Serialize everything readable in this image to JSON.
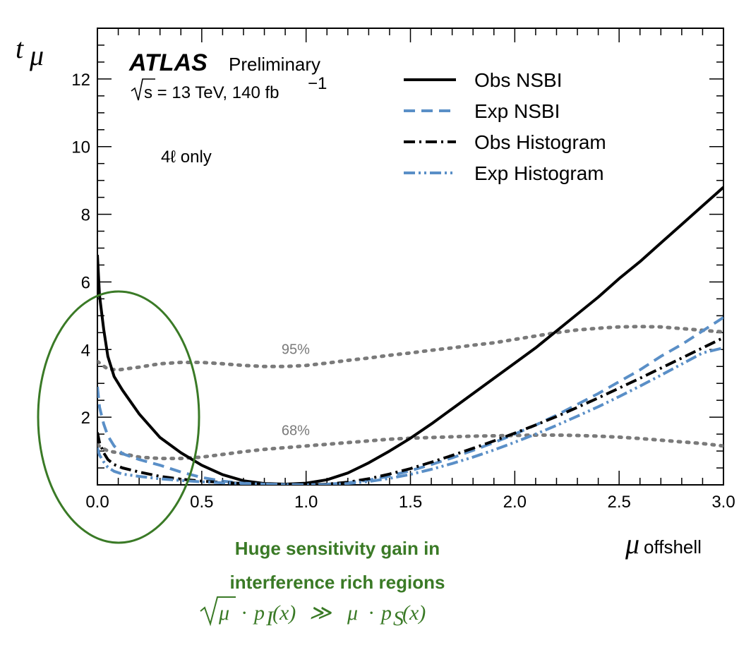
{
  "chart_data": {
    "type": "line",
    "title": "",
    "experiment": "ATLAS",
    "experiment_status": "Preliminary",
    "sqrt_s_text": "s = 13 TeV, 140 fb",
    "lumi_exponent": "−1",
    "channel_label": "4ℓ only",
    "ylabel": "t",
    "ylabel_sub": "μ",
    "xlabel": "μ",
    "xlabel_sub": "offshell",
    "xlim": [
      0.0,
      3.0
    ],
    "ylim": [
      0,
      13.5
    ],
    "x_ticks": [
      0.0,
      0.5,
      1.0,
      1.5,
      2.0,
      2.5,
      3.0
    ],
    "x_tick_labels": [
      "0.0",
      "0.5",
      "1.0",
      "1.5",
      "2.0",
      "2.5",
      "3.0"
    ],
    "y_ticks": [
      2,
      4,
      6,
      8,
      10,
      12
    ],
    "y_tick_labels": [
      "2",
      "4",
      "6",
      "8",
      "10",
      "12"
    ],
    "legend_position": "top-right",
    "grid": false,
    "series": [
      {
        "name": "Obs NSBI",
        "color": "#000000",
        "style": "solid",
        "points": [
          [
            0.0,
            6.8
          ],
          [
            0.01,
            5.6
          ],
          [
            0.03,
            4.6
          ],
          [
            0.05,
            3.8
          ],
          [
            0.08,
            3.2
          ],
          [
            0.12,
            2.8
          ],
          [
            0.2,
            2.1
          ],
          [
            0.3,
            1.4
          ],
          [
            0.4,
            0.95
          ],
          [
            0.5,
            0.58
          ],
          [
            0.6,
            0.3
          ],
          [
            0.7,
            0.12
          ],
          [
            0.8,
            0.04
          ],
          [
            0.9,
            0.02
          ],
          [
            1.0,
            0.05
          ],
          [
            1.1,
            0.15
          ],
          [
            1.2,
            0.35
          ],
          [
            1.3,
            0.65
          ],
          [
            1.4,
            1.0
          ],
          [
            1.5,
            1.38
          ],
          [
            1.6,
            1.8
          ],
          [
            1.7,
            2.25
          ],
          [
            1.8,
            2.7
          ],
          [
            1.9,
            3.15
          ],
          [
            2.0,
            3.6
          ],
          [
            2.1,
            4.05
          ],
          [
            2.2,
            4.55
          ],
          [
            2.3,
            5.05
          ],
          [
            2.4,
            5.55
          ],
          [
            2.5,
            6.1
          ],
          [
            2.6,
            6.6
          ],
          [
            2.7,
            7.15
          ],
          [
            2.8,
            7.7
          ],
          [
            2.9,
            8.25
          ],
          [
            3.0,
            8.8
          ]
        ]
      },
      {
        "name": "Exp NSBI",
        "color": "#5a8fc7",
        "style": "dashed",
        "points": [
          [
            0.0,
            2.9
          ],
          [
            0.01,
            2.3
          ],
          [
            0.03,
            1.8
          ],
          [
            0.05,
            1.45
          ],
          [
            0.08,
            1.15
          ],
          [
            0.12,
            0.92
          ],
          [
            0.2,
            0.75
          ],
          [
            0.3,
            0.58
          ],
          [
            0.4,
            0.38
          ],
          [
            0.5,
            0.22
          ],
          [
            0.6,
            0.11
          ],
          [
            0.7,
            0.05
          ],
          [
            0.8,
            0.02
          ],
          [
            0.9,
            0.01
          ],
          [
            1.0,
            0.0
          ],
          [
            1.1,
            0.02
          ],
          [
            1.2,
            0.06
          ],
          [
            1.3,
            0.14
          ],
          [
            1.4,
            0.26
          ],
          [
            1.5,
            0.42
          ],
          [
            1.6,
            0.6
          ],
          [
            1.7,
            0.8
          ],
          [
            1.8,
            1.02
          ],
          [
            1.9,
            1.25
          ],
          [
            2.0,
            1.5
          ],
          [
            2.1,
            1.77
          ],
          [
            2.2,
            2.06
          ],
          [
            2.3,
            2.38
          ],
          [
            2.4,
            2.7
          ],
          [
            2.5,
            3.05
          ],
          [
            2.6,
            3.4
          ],
          [
            2.7,
            3.8
          ],
          [
            2.8,
            4.15
          ],
          [
            2.9,
            4.55
          ],
          [
            3.0,
            4.95
          ]
        ]
      },
      {
        "name": "Obs Histogram",
        "color": "#000000",
        "style": "dashdot",
        "points": [
          [
            0.0,
            1.55
          ],
          [
            0.01,
            1.25
          ],
          [
            0.03,
            0.95
          ],
          [
            0.05,
            0.75
          ],
          [
            0.08,
            0.6
          ],
          [
            0.12,
            0.5
          ],
          [
            0.2,
            0.38
          ],
          [
            0.3,
            0.25
          ],
          [
            0.4,
            0.17
          ],
          [
            0.5,
            0.11
          ],
          [
            0.6,
            0.07
          ],
          [
            0.7,
            0.04
          ],
          [
            0.8,
            0.02
          ],
          [
            0.9,
            0.01
          ],
          [
            1.0,
            0.0
          ],
          [
            1.1,
            0.02
          ],
          [
            1.2,
            0.08
          ],
          [
            1.3,
            0.18
          ],
          [
            1.4,
            0.32
          ],
          [
            1.5,
            0.48
          ],
          [
            1.6,
            0.67
          ],
          [
            1.7,
            0.87
          ],
          [
            1.8,
            1.08
          ],
          [
            1.9,
            1.3
          ],
          [
            2.0,
            1.53
          ],
          [
            2.1,
            1.77
          ],
          [
            2.2,
            2.02
          ],
          [
            2.3,
            2.29
          ],
          [
            2.4,
            2.57
          ],
          [
            2.5,
            2.86
          ],
          [
            2.6,
            3.15
          ],
          [
            2.7,
            3.45
          ],
          [
            2.8,
            3.75
          ],
          [
            2.9,
            4.05
          ],
          [
            3.0,
            4.35
          ]
        ]
      },
      {
        "name": "Exp Histogram",
        "color": "#5a8fc7",
        "style": "dashdotdot",
        "points": [
          [
            0.0,
            1.1
          ],
          [
            0.01,
            0.88
          ],
          [
            0.03,
            0.68
          ],
          [
            0.05,
            0.52
          ],
          [
            0.08,
            0.4
          ],
          [
            0.12,
            0.32
          ],
          [
            0.2,
            0.25
          ],
          [
            0.3,
            0.18
          ],
          [
            0.4,
            0.13
          ],
          [
            0.5,
            0.09
          ],
          [
            0.6,
            0.06
          ],
          [
            0.7,
            0.04
          ],
          [
            0.8,
            0.02
          ],
          [
            0.9,
            0.01
          ],
          [
            1.0,
            0.0
          ],
          [
            1.1,
            0.01
          ],
          [
            1.2,
            0.04
          ],
          [
            1.3,
            0.1
          ],
          [
            1.4,
            0.19
          ],
          [
            1.5,
            0.31
          ],
          [
            1.6,
            0.46
          ],
          [
            1.7,
            0.63
          ],
          [
            1.8,
            0.82
          ],
          [
            1.9,
            1.03
          ],
          [
            2.0,
            1.26
          ],
          [
            2.1,
            1.5
          ],
          [
            2.2,
            1.76
          ],
          [
            2.3,
            2.03
          ],
          [
            2.4,
            2.31
          ],
          [
            2.5,
            2.61
          ],
          [
            2.6,
            2.92
          ],
          [
            2.7,
            3.24
          ],
          [
            2.8,
            3.57
          ],
          [
            2.9,
            3.9
          ],
          [
            3.0,
            4.05
          ]
        ]
      }
    ],
    "threshold_curves": [
      {
        "label": "95%",
        "color": "#7a7a7a",
        "style": "dotted",
        "label_x": 0.95,
        "points": [
          [
            0.0,
            3.65
          ],
          [
            0.05,
            3.42
          ],
          [
            0.1,
            3.4
          ],
          [
            0.2,
            3.48
          ],
          [
            0.3,
            3.58
          ],
          [
            0.4,
            3.62
          ],
          [
            0.5,
            3.62
          ],
          [
            0.6,
            3.58
          ],
          [
            0.7,
            3.53
          ],
          [
            0.8,
            3.5
          ],
          [
            0.9,
            3.5
          ],
          [
            1.0,
            3.53
          ],
          [
            1.1,
            3.6
          ],
          [
            1.2,
            3.68
          ],
          [
            1.3,
            3.75
          ],
          [
            1.4,
            3.83
          ],
          [
            1.5,
            3.9
          ],
          [
            1.6,
            3.98
          ],
          [
            1.7,
            4.05
          ],
          [
            1.8,
            4.13
          ],
          [
            1.9,
            4.2
          ],
          [
            2.0,
            4.3
          ],
          [
            2.1,
            4.4
          ],
          [
            2.2,
            4.5
          ],
          [
            2.3,
            4.58
          ],
          [
            2.4,
            4.63
          ],
          [
            2.5,
            4.67
          ],
          [
            2.6,
            4.68
          ],
          [
            2.7,
            4.67
          ],
          [
            2.8,
            4.62
          ],
          [
            2.9,
            4.57
          ],
          [
            3.0,
            4.52
          ]
        ]
      },
      {
        "label": "68%",
        "color": "#7a7a7a",
        "style": "dotted",
        "label_x": 0.95,
        "points": [
          [
            0.0,
            1.18
          ],
          [
            0.05,
            1.0
          ],
          [
            0.1,
            0.95
          ],
          [
            0.2,
            0.82
          ],
          [
            0.3,
            0.78
          ],
          [
            0.4,
            0.78
          ],
          [
            0.5,
            0.82
          ],
          [
            0.6,
            0.9
          ],
          [
            0.7,
            0.98
          ],
          [
            0.8,
            1.05
          ],
          [
            0.9,
            1.1
          ],
          [
            1.0,
            1.15
          ],
          [
            1.1,
            1.2
          ],
          [
            1.2,
            1.25
          ],
          [
            1.3,
            1.3
          ],
          [
            1.4,
            1.35
          ],
          [
            1.5,
            1.38
          ],
          [
            1.6,
            1.4
          ],
          [
            1.7,
            1.42
          ],
          [
            1.8,
            1.44
          ],
          [
            1.9,
            1.45
          ],
          [
            2.0,
            1.46
          ],
          [
            2.1,
            1.47
          ],
          [
            2.2,
            1.47
          ],
          [
            2.3,
            1.46
          ],
          [
            2.4,
            1.44
          ],
          [
            2.5,
            1.41
          ],
          [
            2.6,
            1.37
          ],
          [
            2.7,
            1.32
          ],
          [
            2.8,
            1.27
          ],
          [
            2.9,
            1.22
          ],
          [
            3.0,
            1.15
          ]
        ]
      }
    ],
    "annotation": {
      "highlight_color": "#3a7a26",
      "line1": "Huge sensitivity gain in",
      "line2": "interference rich regions",
      "formula": "μ · p(x) ≫ μ · p(x)",
      "formula_sqrt_arg": "μ",
      "formula_p1": "p",
      "formula_sub1": "I",
      "formula_p2": "p",
      "formula_sub2": "S",
      "formula_x": "(x)",
      "formula_op": "≫",
      "formula_dot": "·",
      "formula_mu": "μ"
    }
  }
}
